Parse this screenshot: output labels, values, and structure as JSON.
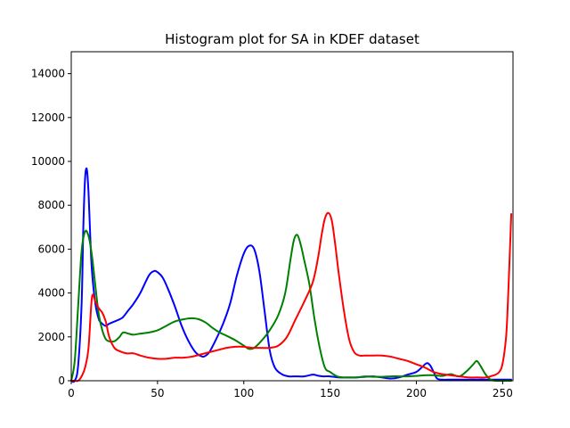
{
  "chart_data": {
    "type": "line",
    "title": "Histogram plot for SA in KDEF dataset",
    "xlabel": "",
    "ylabel": "",
    "xlim": [
      0,
      256
    ],
    "ylim": [
      0,
      15000
    ],
    "xticks": [
      0,
      50,
      100,
      150,
      200,
      250
    ],
    "yticks": [
      0,
      2000,
      4000,
      6000,
      8000,
      10000,
      12000,
      14000
    ],
    "grid": false,
    "legend": "none",
    "series": [
      {
        "color": "#0000ff",
        "x": [
          0,
          2,
          4,
          6,
          7,
          8,
          9,
          10,
          11,
          12,
          14,
          16,
          18,
          20,
          22,
          25,
          28,
          30,
          33,
          36,
          40,
          45,
          48,
          50,
          53,
          56,
          60,
          64,
          68,
          72,
          76,
          78,
          80,
          84,
          88,
          92,
          96,
          100,
          103,
          106,
          109,
          112,
          115,
          118,
          122,
          126,
          130,
          135,
          140,
          143,
          146,
          150,
          155,
          160,
          165,
          170,
          175,
          180,
          185,
          190,
          195,
          200,
          203,
          206,
          208,
          210,
          212,
          215,
          218,
          222,
          226,
          230,
          235,
          240,
          245,
          250,
          253,
          255
        ],
        "values": [
          0,
          0,
          700,
          3500,
          7000,
          9200,
          9650,
          8600,
          6600,
          5000,
          3500,
          2800,
          2600,
          2500,
          2600,
          2700,
          2800,
          2900,
          3200,
          3500,
          4000,
          4800,
          5000,
          4950,
          4700,
          4200,
          3400,
          2500,
          1800,
          1300,
          1100,
          1150,
          1300,
          1900,
          2600,
          3500,
          4800,
          5800,
          6150,
          6000,
          5000,
          3200,
          1400,
          600,
          300,
          200,
          200,
          200,
          280,
          230,
          200,
          200,
          150,
          150,
          150,
          180,
          200,
          150,
          100,
          150,
          280,
          400,
          600,
          800,
          700,
          400,
          100,
          50,
          50,
          50,
          50,
          50,
          50,
          50,
          50,
          50,
          50,
          50
        ]
      },
      {
        "color": "#008000",
        "x": [
          0,
          2,
          4,
          6,
          8,
          10,
          12,
          14,
          16,
          18,
          20,
          22,
          25,
          28,
          30,
          33,
          36,
          40,
          45,
          50,
          55,
          60,
          65,
          70,
          74,
          78,
          82,
          86,
          90,
          95,
          100,
          103,
          106,
          110,
          115,
          120,
          124,
          127,
          129,
          131,
          133,
          135,
          138,
          141,
          144,
          147,
          150,
          154,
          158,
          162,
          166,
          170,
          175,
          180,
          185,
          190,
          195,
          200,
          205,
          210,
          215,
          220,
          225,
          230,
          233,
          235,
          237,
          240,
          243,
          246,
          250,
          255
        ],
        "values": [
          0,
          900,
          3400,
          5900,
          6800,
          6600,
          5700,
          4300,
          3000,
          2300,
          1900,
          1800,
          1800,
          2000,
          2200,
          2150,
          2100,
          2150,
          2200,
          2300,
          2500,
          2700,
          2800,
          2850,
          2800,
          2650,
          2400,
          2200,
          2050,
          1850,
          1600,
          1450,
          1500,
          1800,
          2300,
          3000,
          4000,
          5500,
          6400,
          6650,
          6200,
          5500,
          4400,
          2800,
          1500,
          600,
          400,
          200,
          150,
          150,
          150,
          200,
          180,
          180,
          200,
          200,
          200,
          220,
          250,
          250,
          220,
          300,
          200,
          500,
          750,
          900,
          700,
          300,
          50,
          0,
          0,
          0
        ]
      },
      {
        "color": "#ff0000",
        "x": [
          0,
          2,
          4,
          6,
          8,
          10,
          12,
          14,
          16,
          18,
          20,
          22,
          25,
          28,
          32,
          36,
          40,
          45,
          50,
          55,
          60,
          65,
          70,
          75,
          80,
          85,
          90,
          95,
          100,
          105,
          110,
          115,
          120,
          125,
          130,
          135,
          140,
          143,
          145,
          147,
          149,
          151,
          153,
          155,
          158,
          161,
          164,
          167,
          170,
          175,
          180,
          185,
          190,
          195,
          200,
          205,
          210,
          215,
          220,
          225,
          230,
          235,
          240,
          245,
          248,
          250,
          252,
          253,
          254,
          255
        ],
        "values": [
          0,
          0,
          0,
          200,
          600,
          1500,
          3800,
          3600,
          3300,
          3100,
          2700,
          2000,
          1500,
          1350,
          1250,
          1250,
          1150,
          1050,
          1000,
          1000,
          1050,
          1050,
          1100,
          1200,
          1300,
          1400,
          1500,
          1550,
          1550,
          1500,
          1500,
          1500,
          1600,
          2000,
          2800,
          3600,
          4500,
          5600,
          6600,
          7400,
          7650,
          7300,
          6200,
          4900,
          3200,
          1900,
          1300,
          1150,
          1150,
          1150,
          1150,
          1100,
          1000,
          900,
          750,
          600,
          400,
          300,
          250,
          200,
          150,
          150,
          150,
          250,
          400,
          800,
          2000,
          3500,
          5500,
          7600
        ]
      }
    ]
  }
}
